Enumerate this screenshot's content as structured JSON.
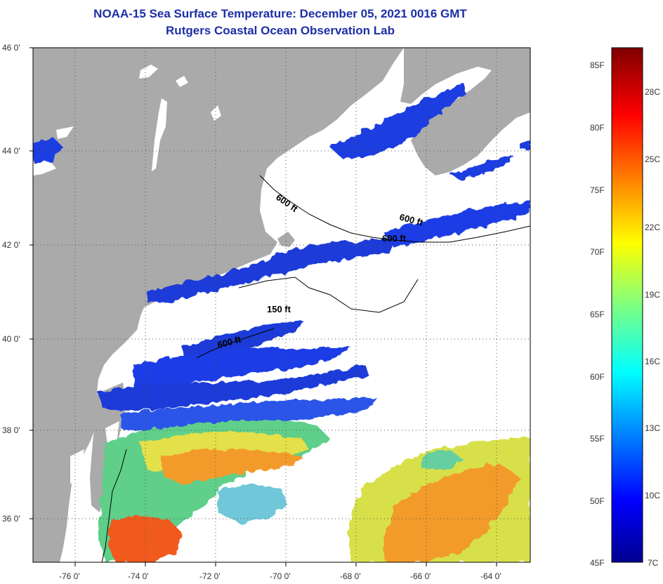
{
  "title": {
    "line1": "NOAA-15 Sea Surface Temperature:  December 05, 2021 0016 GMT",
    "line2": "Rutgers Coastal Ocean Observation Lab"
  },
  "map": {
    "lat_labels": [
      "46 0'",
      "44 0'",
      "42 0'",
      "40 0'",
      "38 0'",
      "36 0'"
    ],
    "lon_labels": [
      "-76 0'",
      "-74 0'",
      "-72 0'",
      "-70 0'",
      "-68 0'",
      "-66 0'",
      "-64 0'"
    ],
    "contour_labels": [
      "600 ft",
      "600 ft",
      "600 ft",
      "150 ft",
      "600 ft"
    ],
    "colors": {
      "land": "#aaaaaa",
      "cloud": "#ffffff",
      "grid": "#555555",
      "frame": "#000000"
    }
  },
  "colorbar": {
    "f_labels": [
      "85F",
      "80F",
      "75F",
      "70F",
      "65F",
      "60F",
      "55F",
      "50F",
      "45F"
    ],
    "c_labels": [
      "28C",
      "25C",
      "22C",
      "19C",
      "16C",
      "13C",
      "10C",
      "7C"
    ]
  }
}
